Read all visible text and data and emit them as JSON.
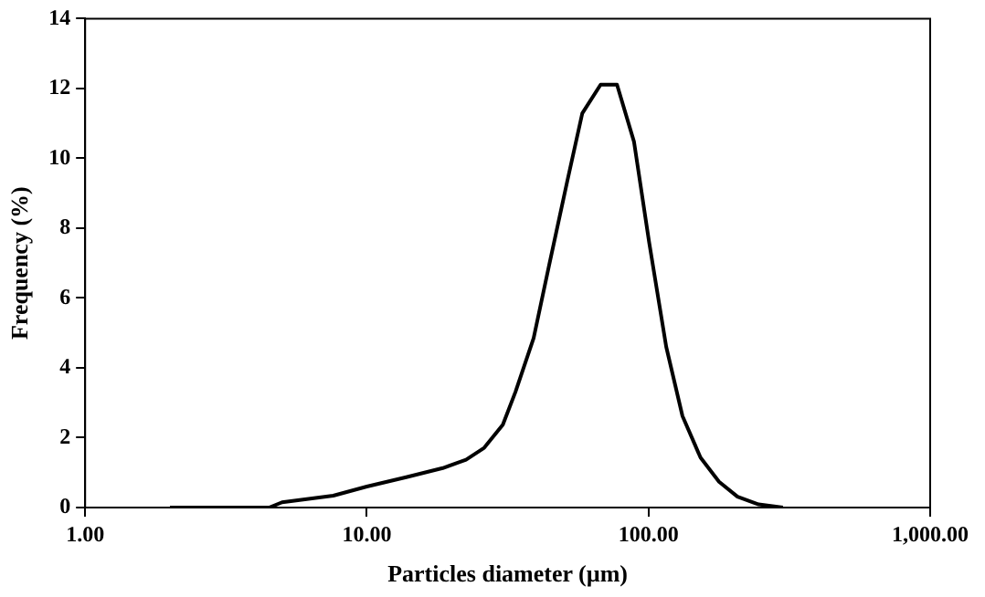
{
  "chart_data": {
    "type": "line",
    "xlabel": "Particles diameter (µm)",
    "ylabel": "Frequency (%)",
    "series": [
      {
        "color": "#000000",
        "x": [
          2.0,
          4.5,
          5.0,
          7.6,
          10,
          13.8,
          18.6,
          22.5,
          26.1,
          30.4,
          33.7,
          39.1,
          44.3,
          51.4,
          58.2,
          67.6,
          77.3,
          88.8,
          100.5,
          115.6,
          132,
          153,
          178,
          207,
          246,
          300
        ],
        "values": [
          0,
          0,
          0.15,
          0.34,
          0.6,
          0.87,
          1.13,
          1.37,
          1.71,
          2.37,
          3.31,
          4.85,
          6.91,
          9.32,
          11.29,
          12.11,
          12.11,
          10.48,
          7.6,
          4.6,
          2.62,
          1.43,
          0.74,
          0.31,
          0.09,
          0
        ]
      }
    ],
    "log": "x",
    "xlim": [
      1,
      1000
    ],
    "xticks": [
      {
        "value": 1,
        "label": "1.00"
      },
      {
        "value": 10,
        "label": "10.00"
      },
      {
        "value": 100,
        "label": "100.00"
      },
      {
        "value": 1000,
        "label": "1,000.00"
      }
    ],
    "ylim": [
      0,
      14
    ],
    "yticks": [
      0,
      2,
      4,
      6,
      8,
      10,
      12,
      14
    ],
    "grid": false,
    "legend": false,
    "marker": "none",
    "line_style": "solid"
  }
}
